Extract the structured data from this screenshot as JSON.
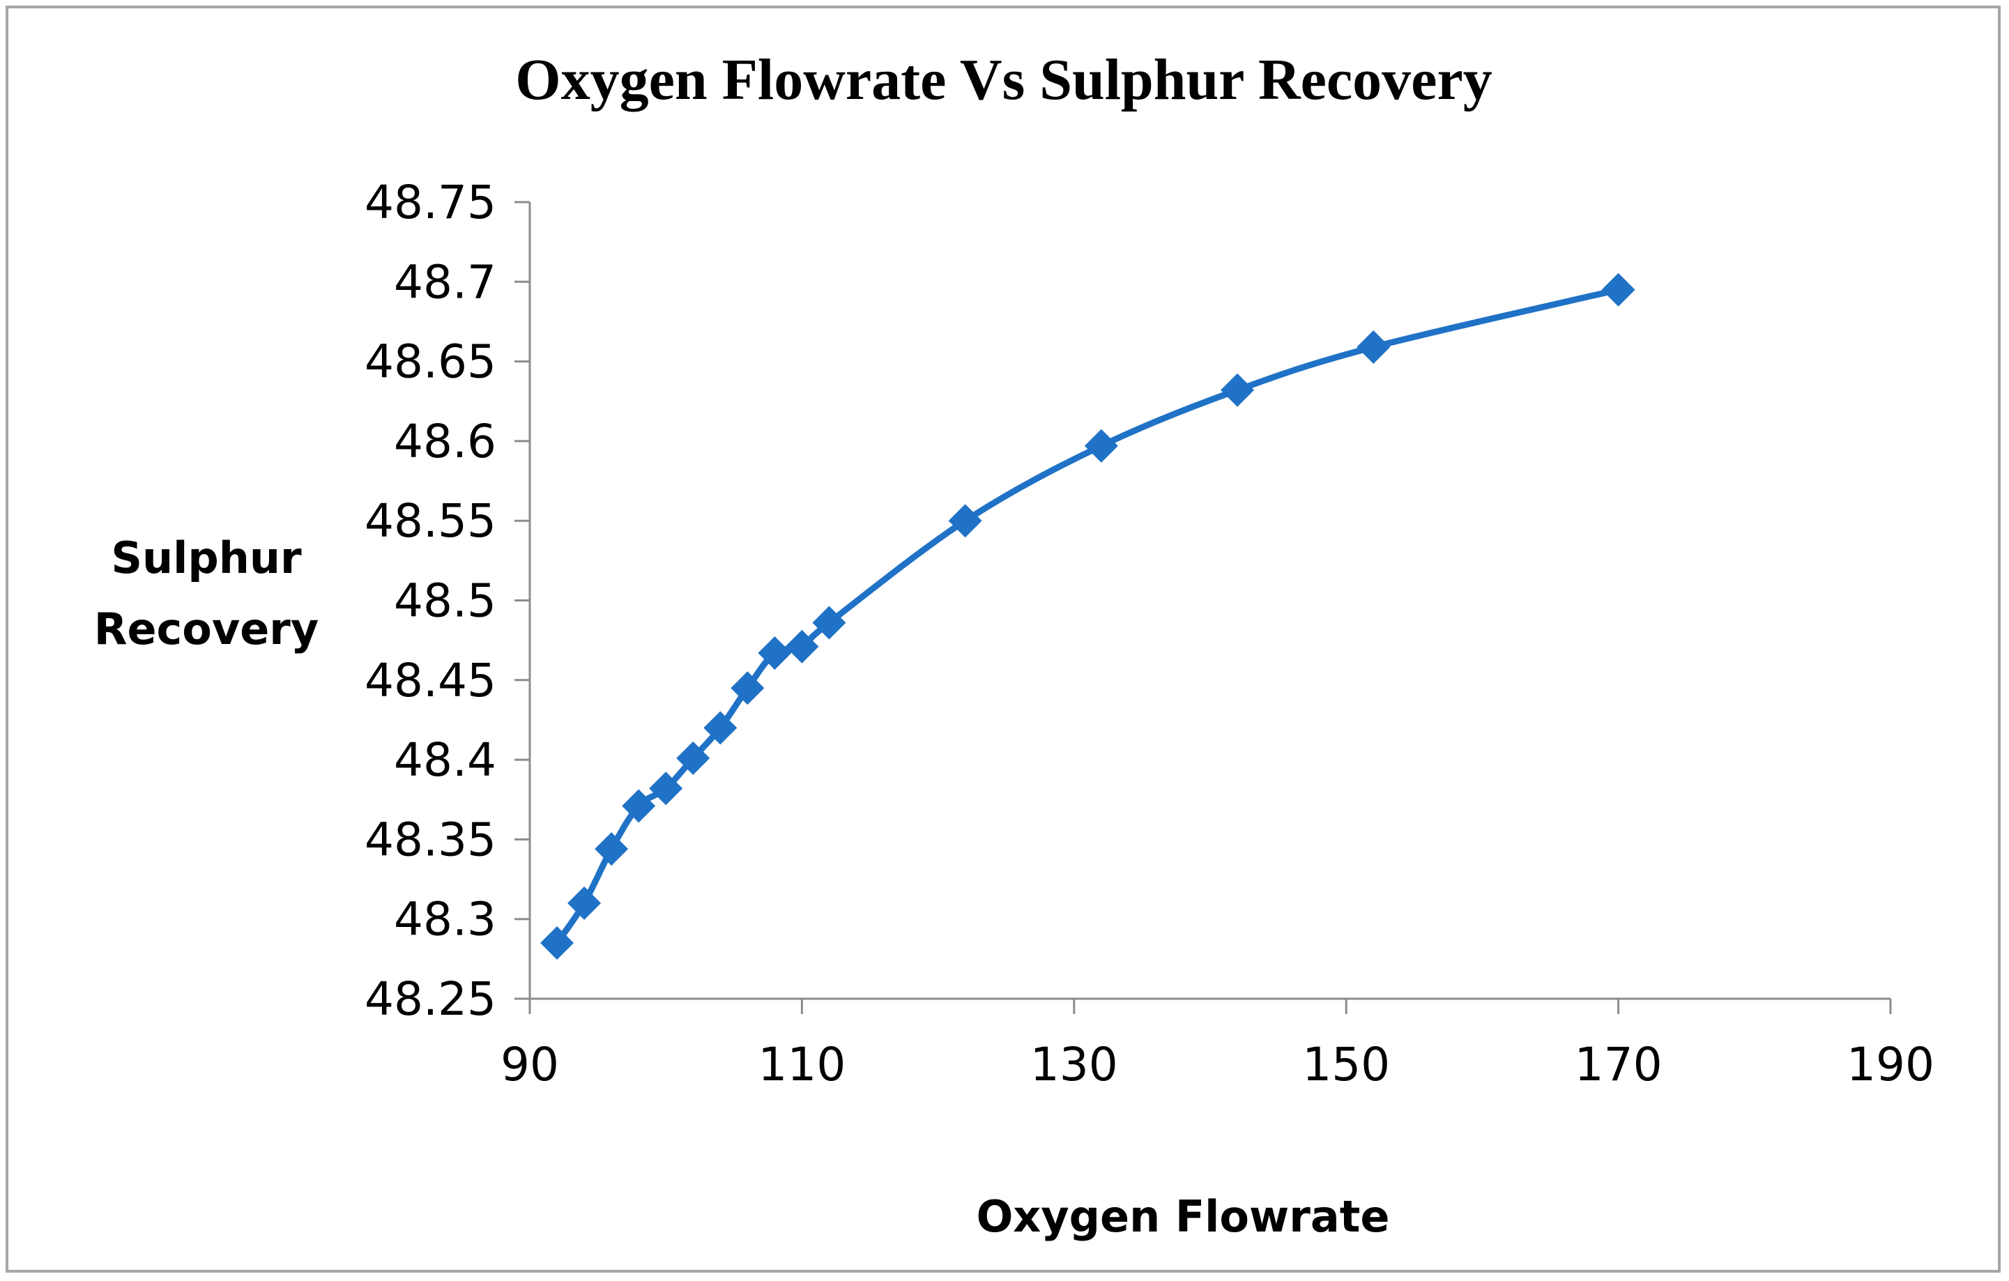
{
  "chart_data": {
    "type": "line",
    "title": "Oxygen Flowrate Vs Sulphur Recovery",
    "xlabel": "Oxygen Flowrate",
    "ylabel_lines": [
      "Sulphur",
      "Recovery"
    ],
    "xlim": [
      90,
      190
    ],
    "ylim": [
      48.25,
      48.75
    ],
    "x_ticks": [
      "90",
      "110",
      "130",
      "150",
      "170",
      "190"
    ],
    "x_tick_values": [
      90,
      110,
      130,
      150,
      170,
      190
    ],
    "y_ticks": [
      "48.25",
      "48.3",
      "48.35",
      "48.4",
      "48.45",
      "48.5",
      "48.55",
      "48.6",
      "48.65",
      "48.7",
      "48.75"
    ],
    "y_tick_values": [
      48.25,
      48.3,
      48.35,
      48.4,
      48.45,
      48.5,
      48.55,
      48.6,
      48.65,
      48.7,
      48.75
    ],
    "grid": false,
    "legend": "none",
    "marker": "diamond",
    "series": [
      {
        "name": "Sulphur Recovery",
        "color": "#1f72c6",
        "x": [
          92,
          94,
          96,
          98,
          100,
          102,
          104,
          106,
          108,
          110,
          112,
          122,
          132,
          142,
          152,
          170
        ],
        "y": [
          48.285,
          48.31,
          48.344,
          48.371,
          48.382,
          48.401,
          48.42,
          48.445,
          48.467,
          48.471,
          48.486,
          48.55,
          48.597,
          48.632,
          48.659,
          48.695
        ]
      }
    ]
  }
}
